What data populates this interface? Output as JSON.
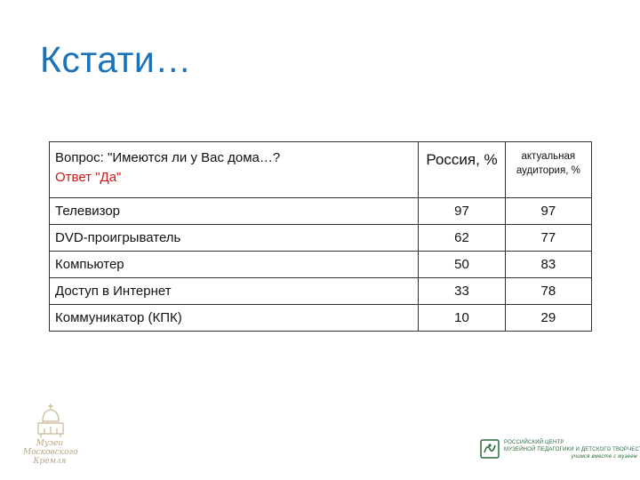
{
  "slide": {
    "title": "Кстати…"
  },
  "table": {
    "question": "Вопрос: \"Имеются ли у Вас дома…?",
    "answer": "Ответ \"Да\"",
    "col_russia": "Россия, %",
    "col_audience": "актуальная аудитория, %",
    "rows": [
      {
        "label": "Телевизор",
        "russia": "97",
        "audience": "97"
      },
      {
        "label": "DVD-проигрыватель",
        "russia": "62",
        "audience": "77"
      },
      {
        "label": "Компьютер",
        "russia": "50",
        "audience": "83"
      },
      {
        "label": "Доступ в Интернет",
        "russia": "33",
        "audience": "78"
      },
      {
        "label": "Коммуникатор (КПК)",
        "russia": "10",
        "audience": "29"
      }
    ]
  },
  "footer": {
    "museum_lines": [
      "Музеи",
      "Московского",
      "Кремля"
    ],
    "center_lines": [
      "РОССИЙСКИЙ ЦЕНТР",
      "МУЗЕЙНОЙ ПЕДАГОГИКИ И ДЕТСКОГО ТВОРЧЕСТВА"
    ],
    "center_tagline": "учимся вместе с музеем",
    "accent_color": "#1a72b8",
    "answer_color": "#cc1a1a"
  }
}
